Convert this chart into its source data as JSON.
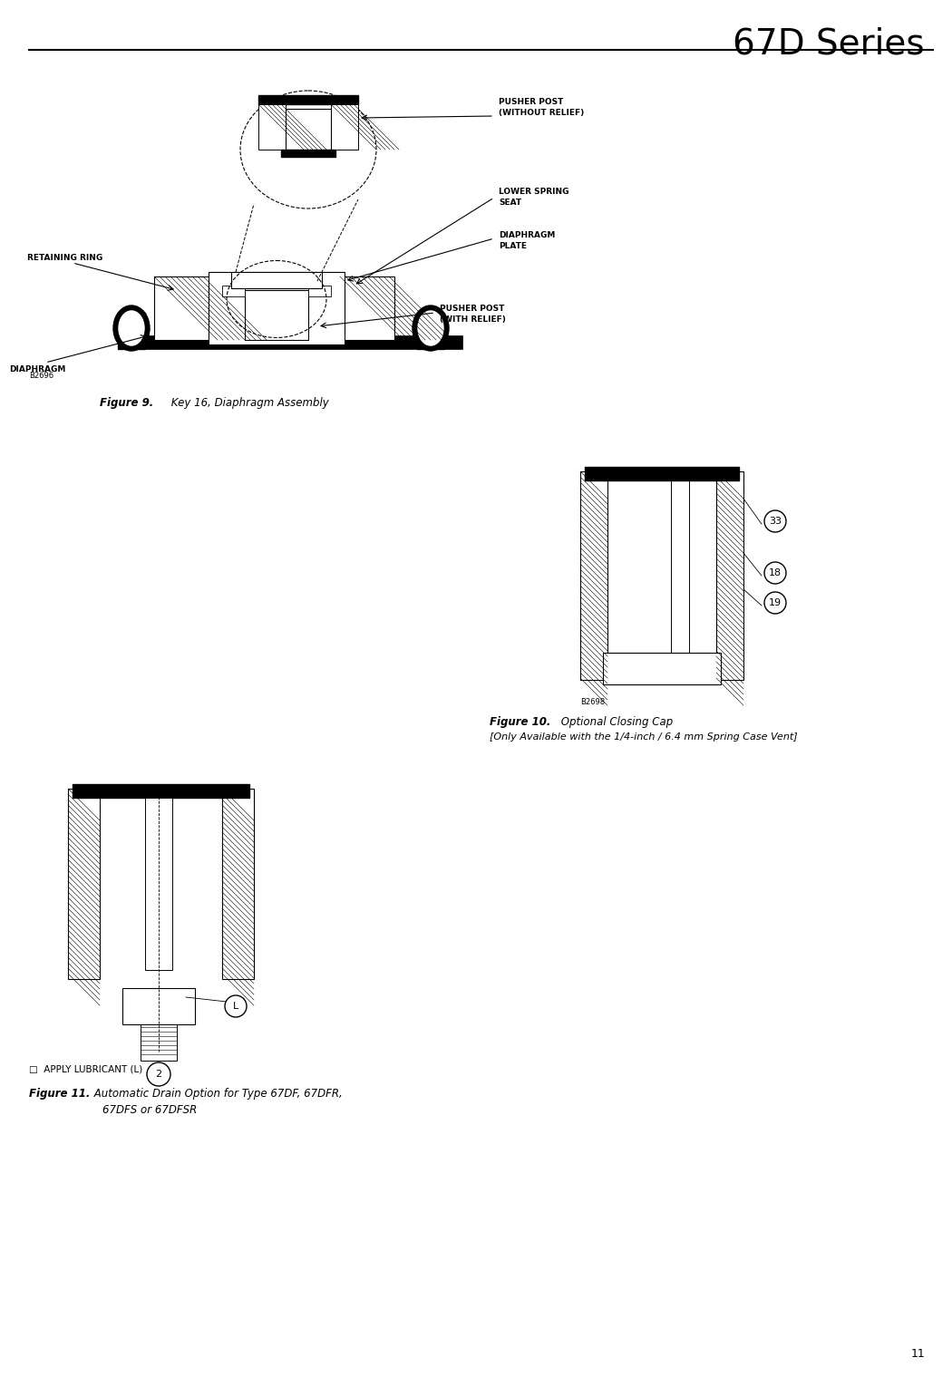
{
  "page_title": "67D Series",
  "page_number": "11",
  "background_color": "#ffffff",
  "text_color": "#000000",
  "line_color": "#000000",
  "figure9_caption_bold": "Figure 9.",
  "figure9_caption_normal": " Key 16, Diaphragm Assembly",
  "figure10_caption_bold": "Figure 10.",
  "figure10_caption_normal": " Optional Closing Cap",
  "figure10_subcaption": "[Only Available with the 1/4-inch / 6.4 mm Spring Case Vent]",
  "figure11_caption_bold": "Figure 11.",
  "figure11_caption_normal": " Automatic Drain Option for Type 67DF, 67DFR,",
  "figure11_caption_line2": "67DFS or 67DFSR",
  "figure11_label": "□  APPLY LUBRICANT (L)",
  "label_pusher_post_without": "PUSHER POST\n(WITHOUT RELIEF)",
  "label_lower_spring_seat": "LOWER SPRING\nSEAT",
  "label_diaphragm_plate": "DIAPHRAGM\nPLATE",
  "label_pusher_post_with": "PUSHER POST\n(WITH RELIEF)",
  "label_retaining_ring": "RETAINING RING",
  "label_diaphragm": "DIAPHRAGM",
  "callout_33": "33",
  "callout_18": "18",
  "callout_19": "19",
  "callout_L": "L",
  "callout_2": "2",
  "b2696": "B2696",
  "b2698": "B2698"
}
